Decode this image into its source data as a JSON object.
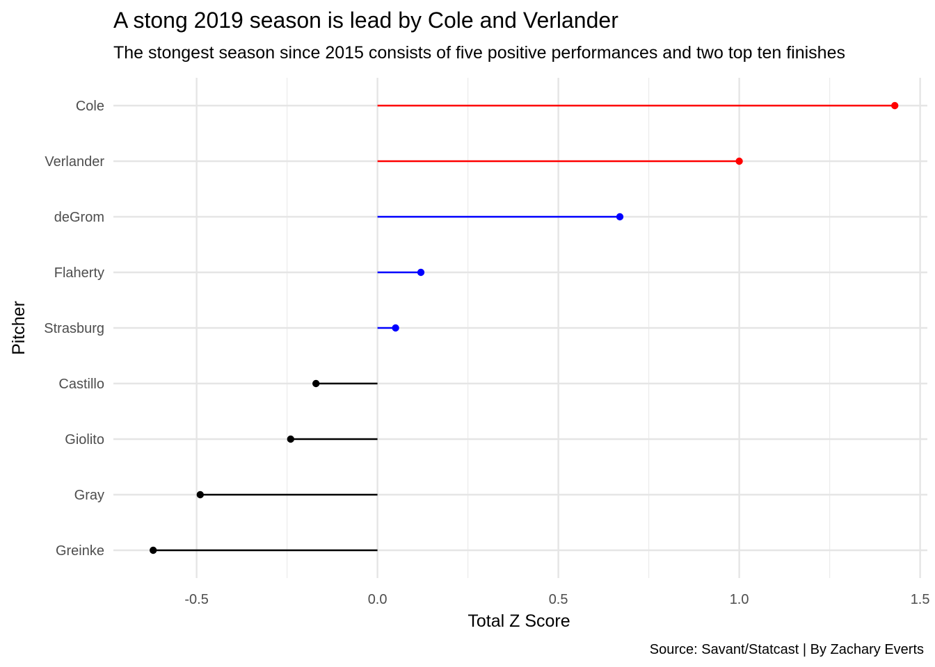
{
  "chart_data": {
    "type": "lollipop",
    "title": "A stong 2019 season is lead by Cole and Verlander",
    "subtitle": "The stongest season since 2015 consists of five positive performances and two top ten finishes",
    "xlabel": "Total Z Score",
    "ylabel": "Pitcher",
    "caption": "Source: Savant/Statcast | By Zachary Everts",
    "xlim": [
      -0.73,
      1.52
    ],
    "xticks": [
      -0.5,
      0.0,
      0.5,
      1.0,
      1.5
    ],
    "xtick_labels": [
      "-0.5",
      "0.0",
      "0.5",
      "1.0",
      "1.5"
    ],
    "x_minor_grid": [
      -0.25,
      0.25,
      0.75,
      1.25
    ],
    "grid": true,
    "legend": "none",
    "categories": [
      "Cole",
      "Verlander",
      "deGrom",
      "Flaherty",
      "Strasburg",
      "Castillo",
      "Giolito",
      "Gray",
      "Greinke"
    ],
    "values": [
      1.43,
      1.0,
      0.67,
      0.12,
      0.05,
      -0.17,
      -0.24,
      -0.49,
      -0.62
    ],
    "colors": [
      "#ff0000",
      "#ff0000",
      "#0000ff",
      "#0000ff",
      "#0000ff",
      "#000000",
      "#000000",
      "#000000",
      "#000000"
    ]
  }
}
